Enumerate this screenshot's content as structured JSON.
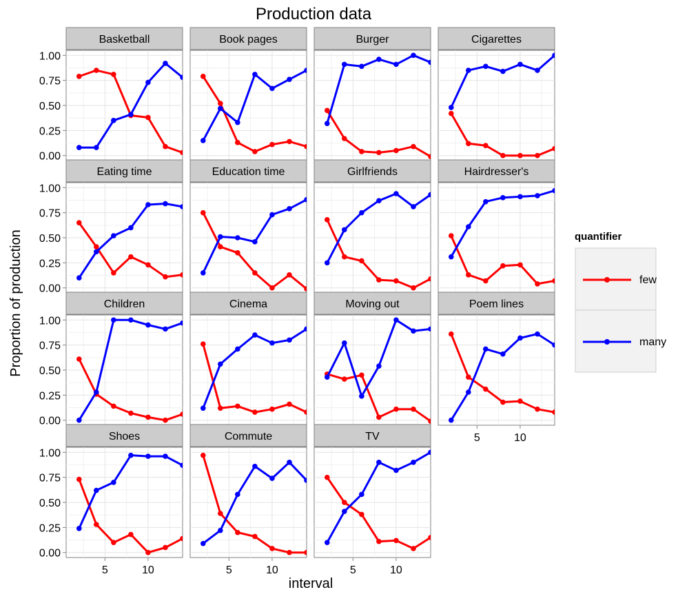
{
  "chart_data": {
    "type": "line",
    "title": "Production data",
    "xlabel": "interval",
    "ylabel": "Proportion of production",
    "x": [
      2,
      4,
      6,
      8,
      10,
      12,
      14
    ],
    "xlim": [
      0.5,
      14
    ],
    "ylim": [
      -0.05,
      1.05
    ],
    "x_ticks": [
      5,
      10
    ],
    "x_tick_labels": [
      "5",
      "10"
    ],
    "y_ticks": [
      0,
      0.25,
      0.5,
      0.75,
      1
    ],
    "y_tick_labels": [
      "0.00",
      "0.25",
      "0.50",
      "0.75",
      "1.00"
    ],
    "grid": true,
    "legend": {
      "title": "quantifier",
      "position": "right",
      "entries": [
        {
          "label": "few",
          "color": "#ff0000"
        },
        {
          "label": "many",
          "color": "#0000ff"
        }
      ]
    },
    "series_colors": {
      "few": "#ff0000",
      "many": "#0000ff"
    },
    "panels": [
      {
        "title": "Basketball",
        "few": [
          0.79,
          0.85,
          0.81,
          0.4,
          0.38,
          0.09,
          0.03
        ],
        "many": [
          0.08,
          0.08,
          0.35,
          0.41,
          0.73,
          0.92,
          0.78
        ]
      },
      {
        "title": "Book pages",
        "few": [
          0.79,
          0.52,
          0.13,
          0.04,
          0.11,
          0.14,
          0.09
        ],
        "many": [
          0.15,
          0.47,
          0.33,
          0.81,
          0.67,
          0.76,
          0.85
        ]
      },
      {
        "title": "Burger",
        "few": [
          0.45,
          0.17,
          0.04,
          0.03,
          0.05,
          0.09,
          -0.01
        ],
        "many": [
          0.32,
          0.91,
          0.89,
          0.96,
          0.91,
          1.0,
          0.93
        ]
      },
      {
        "title": "Cigarettes",
        "few": [
          0.42,
          0.12,
          0.1,
          0.0,
          0.0,
          0.0,
          0.07
        ],
        "many": [
          0.48,
          0.85,
          0.89,
          0.84,
          0.91,
          0.85,
          1.0
        ]
      },
      {
        "title": "Eating time",
        "few": [
          0.65,
          0.41,
          0.15,
          0.31,
          0.23,
          0.11,
          0.13
        ],
        "many": [
          0.1,
          0.36,
          0.52,
          0.6,
          0.83,
          0.84,
          0.81
        ]
      },
      {
        "title": "Education time",
        "few": [
          0.75,
          0.41,
          0.35,
          0.15,
          0.0,
          0.13,
          -0.01
        ],
        "many": [
          0.15,
          0.51,
          0.5,
          0.46,
          0.73,
          0.79,
          0.88
        ]
      },
      {
        "title": "Girlfriends",
        "few": [
          0.68,
          0.31,
          0.27,
          0.08,
          0.07,
          0.0,
          0.09
        ],
        "many": [
          0.25,
          0.58,
          0.75,
          0.87,
          0.94,
          0.81,
          0.93
        ]
      },
      {
        "title": "Hairdresser's",
        "few": [
          0.52,
          0.13,
          0.07,
          0.22,
          0.23,
          0.04,
          0.07
        ],
        "many": [
          0.31,
          0.61,
          0.86,
          0.9,
          0.91,
          0.92,
          0.97
        ]
      },
      {
        "title": "Children",
        "few": [
          0.61,
          0.26,
          0.14,
          0.07,
          0.03,
          0.0,
          0.06
        ],
        "many": [
          0.0,
          0.28,
          1.0,
          1.0,
          0.95,
          0.91,
          0.97
        ]
      },
      {
        "title": "Cinema",
        "few": [
          0.76,
          0.12,
          0.14,
          0.08,
          0.11,
          0.16,
          0.08
        ],
        "many": [
          0.12,
          0.56,
          0.71,
          0.85,
          0.77,
          0.8,
          0.91
        ]
      },
      {
        "title": "Moving out",
        "few": [
          0.46,
          0.41,
          0.45,
          0.03,
          0.11,
          0.11,
          -0.01
        ],
        "many": [
          0.43,
          0.77,
          0.24,
          0.54,
          1.0,
          0.89,
          0.91
        ]
      },
      {
        "title": "Poem lines",
        "few": [
          0.86,
          0.43,
          0.31,
          0.18,
          0.19,
          0.11,
          0.08
        ],
        "many": [
          0.0,
          0.28,
          0.71,
          0.66,
          0.82,
          0.86,
          0.75
        ]
      },
      {
        "title": "Shoes",
        "few": [
          0.73,
          0.28,
          0.1,
          0.18,
          0.0,
          0.05,
          0.14
        ],
        "many": [
          0.24,
          0.62,
          0.7,
          0.97,
          0.96,
          0.96,
          0.87
        ]
      },
      {
        "title": "Commute",
        "few": [
          0.97,
          0.39,
          0.2,
          0.16,
          0.04,
          0.0,
          0.0
        ],
        "many": [
          0.09,
          0.22,
          0.58,
          0.86,
          0.74,
          0.9,
          0.72
        ]
      },
      {
        "title": "TV",
        "few": [
          0.75,
          0.5,
          0.38,
          0.11,
          0.12,
          0.04,
          0.15
        ],
        "many": [
          0.1,
          0.41,
          0.58,
          0.9,
          0.82,
          0.9,
          1.0
        ]
      }
    ]
  }
}
